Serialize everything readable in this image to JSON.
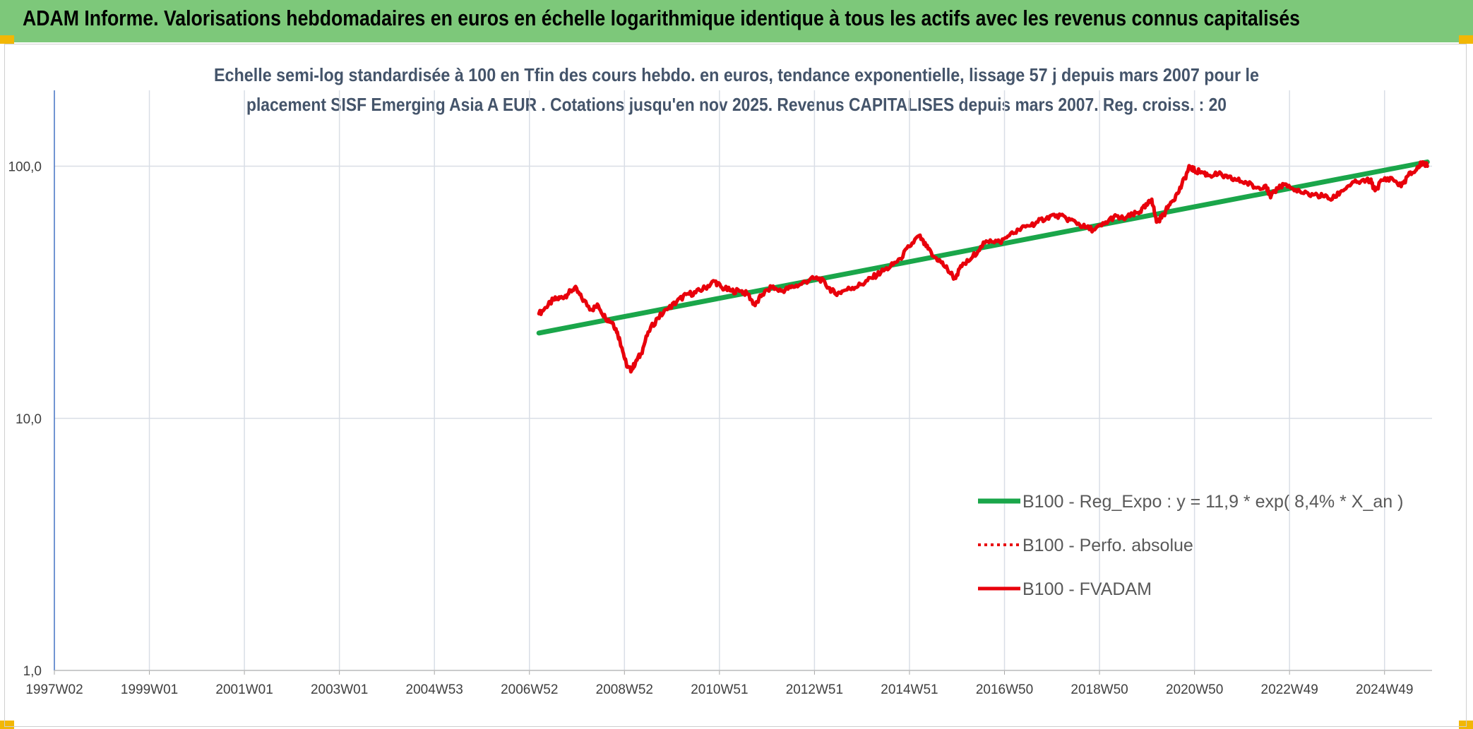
{
  "banner": {
    "title": "ADAM Informe. Valorisations hebdomadaires en euros en échelle logarithmique identique à tous les actifs avec les revenus connus capitalisés"
  },
  "colors": {
    "banner_bg": "#7dc87a",
    "corner": "#f2b705",
    "regression": "#1aa64a",
    "fvadam": "#e8000b",
    "perfo": "#e8000b",
    "grid": "#d9dee6",
    "axis": "#4472c4"
  },
  "chart_data": {
    "type": "line",
    "title_lines": [
      "Echelle semi-log standardisée à 100 en Tfin des cours hebdo. en euros, tendance exponentielle, lissage 57 j depuis mars 2007 pour le",
      "placement SISF Emerging Asia A EUR . Cotations jusqu'en nov 2025. Revenus CAPITALISES depuis mars 2007. Reg. croiss. : 20"
    ],
    "y_scale": "log",
    "ylim": [
      1,
      200
    ],
    "y_ticks": [
      1,
      10,
      100
    ],
    "y_tick_labels": [
      "1,0",
      "10,0",
      "100,0"
    ],
    "xlim": [
      1997.0,
      2026.0
    ],
    "x_tick_positions": [
      1997.0,
      1999.0,
      2001.0,
      2003.0,
      2005.0,
      2007.0,
      2009.0,
      2011.0,
      2013.0,
      2015.0,
      2017.0,
      2019.0,
      2021.0,
      2023.0,
      2025.0
    ],
    "x_tick_labels": [
      "1997W02",
      "1999W01",
      "2001W01",
      "2003W01",
      "2004W53",
      "2006W52",
      "2008W52",
      "2010W51",
      "2012W51",
      "2014W51",
      "2016W50",
      "2018W50",
      "2020W50",
      "2022W49",
      "2024W49"
    ],
    "grid": true,
    "legend_position": "bottom-right",
    "series": [
      {
        "name": "B100 - Reg_Expo : y = 11,9 * exp( 8,4% *  X_an )",
        "style": "solid-thick",
        "color": "#1aa64a",
        "x": [
          2007.2,
          2025.9
        ],
        "y": [
          21.8,
          104
        ]
      },
      {
        "name": "B100 - Perfo. absolue",
        "style": "dotted",
        "color": "#e8000b",
        "x": [],
        "y": []
      },
      {
        "name": "B100 - FVADAM",
        "style": "solid",
        "color": "#e8000b",
        "x": [
          2007.2,
          2007.35,
          2007.5,
          2007.65,
          2007.8,
          2007.95,
          2008.1,
          2008.3,
          2008.45,
          2008.6,
          2008.75,
          2008.85,
          2008.95,
          2009.05,
          2009.15,
          2009.25,
          2009.35,
          2009.5,
          2009.7,
          2009.9,
          2010.1,
          2010.3,
          2010.5,
          2010.7,
          2010.9,
          2011.05,
          2011.25,
          2011.45,
          2011.6,
          2011.75,
          2011.9,
          2012.1,
          2012.3,
          2012.5,
          2012.7,
          2012.9,
          2013.1,
          2013.3,
          2013.45,
          2013.6,
          2013.8,
          2014.0,
          2014.2,
          2014.4,
          2014.6,
          2014.8,
          2015.0,
          2015.2,
          2015.35,
          2015.5,
          2015.65,
          2015.8,
          2015.95,
          2016.1,
          2016.3,
          2016.5,
          2016.7,
          2016.9,
          2017.1,
          2017.3,
          2017.5,
          2017.7,
          2017.9,
          2018.1,
          2018.3,
          2018.5,
          2018.7,
          2018.9,
          2019.1,
          2019.3,
          2019.5,
          2019.7,
          2019.85,
          2020.0,
          2020.1,
          2020.2,
          2020.35,
          2020.5,
          2020.65,
          2020.8,
          2020.9,
          2021.0,
          2021.15,
          2021.3,
          2021.5,
          2021.7,
          2021.9,
          2022.1,
          2022.3,
          2022.5,
          2022.6,
          2022.75,
          2022.9,
          2023.1,
          2023.3,
          2023.5,
          2023.7,
          2023.9,
          2024.1,
          2024.3,
          2024.5,
          2024.7,
          2024.8,
          2024.95,
          2025.15,
          2025.35,
          2025.5,
          2025.65,
          2025.8,
          2025.9
        ],
        "y": [
          26,
          27.5,
          29.5,
          30,
          31,
          33,
          30,
          27,
          28,
          25,
          24,
          22,
          19,
          16,
          15.5,
          17,
          18,
          22,
          25,
          27,
          29,
          31,
          31.5,
          33,
          35,
          33,
          32,
          32,
          31,
          28,
          31,
          33,
          32,
          33,
          34,
          35.5,
          36,
          33,
          31,
          32,
          33,
          34,
          36,
          38,
          40,
          43,
          48,
          53,
          48,
          44,
          42,
          39,
          36,
          40,
          43,
          48,
          51,
          50,
          53,
          56,
          58,
          60,
          63,
          64,
          62,
          60,
          57,
          56,
          59,
          63,
          62,
          64,
          66,
          70,
          74,
          60,
          64,
          72,
          78,
          90,
          100,
          96,
          95,
          92,
          93,
          90,
          88,
          86,
          82,
          84,
          75,
          82,
          85,
          80,
          78,
          77,
          76,
          74,
          80,
          85,
          87,
          88,
          80,
          88,
          90,
          83,
          92,
          96,
          104,
          100
        ]
      }
    ]
  }
}
